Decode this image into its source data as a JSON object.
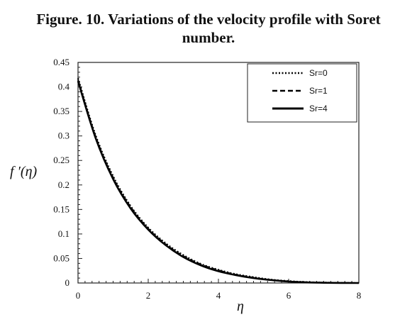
{
  "figure": {
    "title_line1": "Figure. 10. Variations of the velocity profile with Soret",
    "title_line2": "number."
  },
  "chart_data": {
    "type": "line",
    "title": "Figure. 10. Variations of the velocity profile with Soret number.",
    "xlabel": "η",
    "ylabel": "f ′(η)",
    "xlim": [
      0,
      8
    ],
    "ylim": [
      0,
      0.45
    ],
    "xticks": [
      0,
      2,
      4,
      6,
      8
    ],
    "yticks": [
      0,
      0.05,
      0.1,
      0.15,
      0.2,
      0.25,
      0.3,
      0.35,
      0.4,
      0.45
    ],
    "ytick_labels": [
      "0",
      "0.05",
      "0.1",
      "0.15",
      "0.2",
      "0.25",
      "0.3",
      "0.35",
      "0.4",
      "0.45"
    ],
    "xtick_labels": [
      "0",
      "2",
      "4",
      "6",
      "8"
    ],
    "grid": false,
    "legend_position": "top-right",
    "series": [
      {
        "name": "Sr=0",
        "style": "dotted",
        "x": [
          0,
          0.5,
          1,
          1.5,
          2,
          2.5,
          3,
          3.5,
          4,
          4.5,
          5,
          5.5,
          6,
          6.5,
          7,
          7.5,
          8
        ],
        "values": [
          0.418,
          0.302,
          0.218,
          0.157,
          0.113,
          0.081,
          0.057,
          0.039,
          0.027,
          0.018,
          0.012,
          0.007,
          0.004,
          0.002,
          0.001,
          0.0004,
          0.0
        ]
      },
      {
        "name": "Sr=1",
        "style": "dashed",
        "x": [
          0,
          0.5,
          1,
          1.5,
          2,
          2.5,
          3,
          3.5,
          4,
          4.5,
          5,
          5.5,
          6,
          6.5,
          7,
          7.5,
          8
        ],
        "values": [
          0.415,
          0.299,
          0.215,
          0.155,
          0.111,
          0.079,
          0.055,
          0.038,
          0.026,
          0.017,
          0.011,
          0.006,
          0.003,
          0.0015,
          0.0007,
          0.0002,
          0.0
        ]
      },
      {
        "name": "Sr=4",
        "style": "solid",
        "x": [
          0,
          0.5,
          1,
          1.5,
          2,
          2.5,
          3,
          3.5,
          4,
          4.5,
          5,
          5.5,
          6,
          6.5,
          7,
          7.5,
          8
        ],
        "values": [
          0.412,
          0.296,
          0.212,
          0.152,
          0.109,
          0.077,
          0.053,
          0.036,
          0.024,
          0.016,
          0.01,
          0.006,
          0.003,
          0.0013,
          0.0005,
          0.0001,
          0.0
        ]
      }
    ]
  }
}
